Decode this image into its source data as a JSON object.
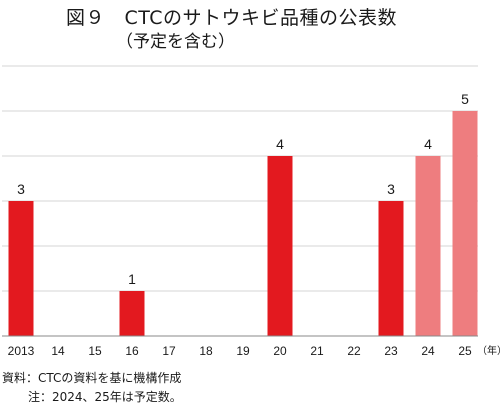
{
  "title": "図９　CTCのサトウキビ品種の公表数",
  "subtitle": "（予定を含む）",
  "chart_data": {
    "type": "bar",
    "categories": [
      "2013",
      "14",
      "15",
      "16",
      "17",
      "18",
      "19",
      "20",
      "21",
      "22",
      "23",
      "24",
      "25"
    ],
    "values": [
      3,
      0,
      0,
      1,
      0,
      0,
      0,
      4,
      0,
      0,
      3,
      4,
      5
    ],
    "status": [
      "actual",
      "actual",
      "actual",
      "actual",
      "actual",
      "actual",
      "actual",
      "actual",
      "actual",
      "actual",
      "actual",
      "planned",
      "planned"
    ],
    "x_unit": "（年）",
    "ylim": [
      0,
      6
    ],
    "grid": true,
    "colors": {
      "actual": "#e3191f",
      "planned": "#ee7d7f"
    }
  },
  "notes": {
    "source": "資料：CTCの資料を基に機構作成",
    "note": "注：2024、25年は予定数。"
  }
}
